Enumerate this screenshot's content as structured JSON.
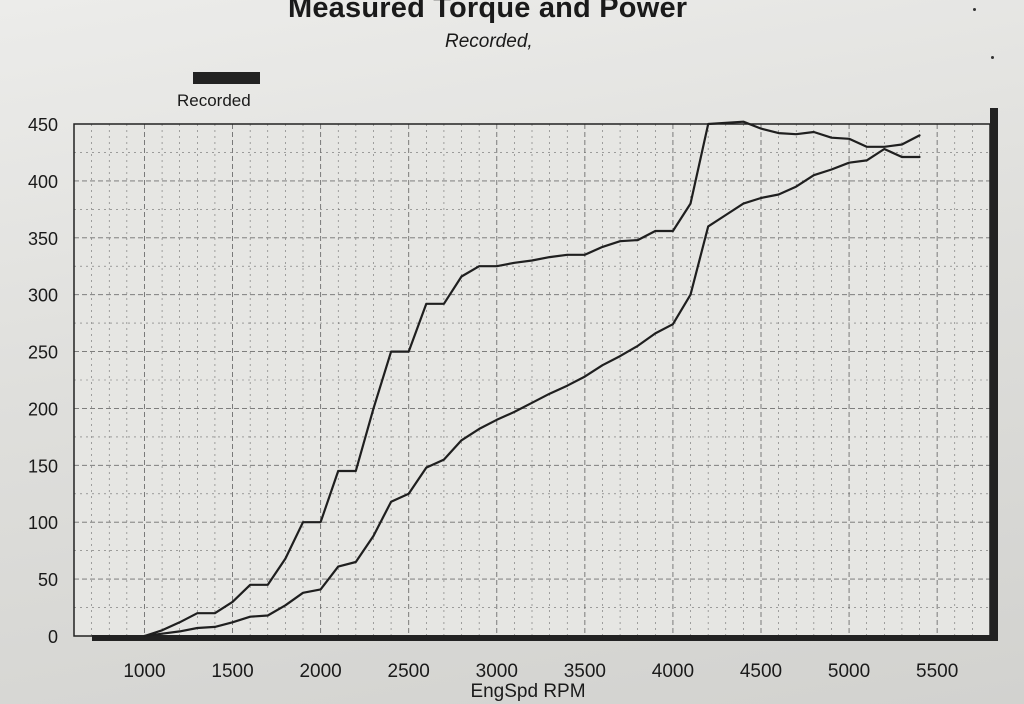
{
  "title": "Measured Torque and Power",
  "subtitle": "Recorded,",
  "legend": {
    "label": "Recorded",
    "color": "#222222"
  },
  "colors": {
    "series": "#1f1f1f",
    "grid": "#6f6f6f",
    "frame": "#222222"
  },
  "chart_data": {
    "type": "line",
    "xlabel": "EngSpd  RPM",
    "xlim": [
      600,
      5800
    ],
    "ylim": [
      0,
      450
    ],
    "xticks": [
      1000,
      1500,
      2000,
      2500,
      3000,
      3500,
      4000,
      4500,
      5000,
      5500
    ],
    "yticks": [
      0,
      50,
      100,
      150,
      200,
      250,
      300,
      350,
      400,
      450
    ],
    "grid": true,
    "legend_position": "top-left",
    "series": [
      {
        "x": [
          1000,
          1100,
          1200,
          1300,
          1400,
          1500,
          1600,
          1700,
          1800,
          1900,
          2000,
          2100,
          2200,
          2300,
          2400,
          2500,
          2600,
          2700,
          2800,
          2900,
          3000,
          3100,
          3200,
          3300,
          3400,
          3500,
          3600,
          3700,
          3800,
          3900,
          4000,
          4100,
          4200,
          4300,
          4400,
          4500,
          4600,
          4700,
          4800,
          4900,
          5000,
          5100,
          5200,
          5300,
          5400
        ],
        "values": [
          0,
          5,
          12,
          20,
          20,
          30,
          45,
          45,
          68,
          100,
          100,
          145,
          145,
          200,
          250,
          250,
          292,
          292,
          316,
          325,
          325,
          328,
          330,
          333,
          335,
          335,
          342,
          347,
          348,
          356,
          356,
          380,
          450,
          451,
          452,
          446,
          442,
          441,
          443,
          438,
          437,
          430,
          430,
          432,
          440
        ]
      },
      {
        "x": [
          1000,
          1100,
          1200,
          1300,
          1400,
          1500,
          1600,
          1700,
          1800,
          1900,
          2000,
          2100,
          2200,
          2300,
          2400,
          2500,
          2600,
          2700,
          2800,
          2900,
          3000,
          3100,
          3200,
          3300,
          3400,
          3500,
          3600,
          3700,
          3800,
          3900,
          4000,
          4100,
          4200,
          4300,
          4400,
          4500,
          4600,
          4700,
          4800,
          4900,
          5000,
          5100,
          5200,
          5300,
          5400
        ],
        "values": [
          0,
          2,
          4,
          7,
          8,
          12,
          17,
          18,
          27,
          38,
          41,
          61,
          65,
          88,
          118,
          125,
          148,
          155,
          172,
          182,
          190,
          197,
          205,
          213,
          220,
          228,
          238,
          246,
          255,
          266,
          274,
          300,
          360,
          370,
          380,
          385,
          388,
          395,
          405,
          410,
          416,
          418,
          428,
          421,
          421
        ]
      }
    ]
  }
}
